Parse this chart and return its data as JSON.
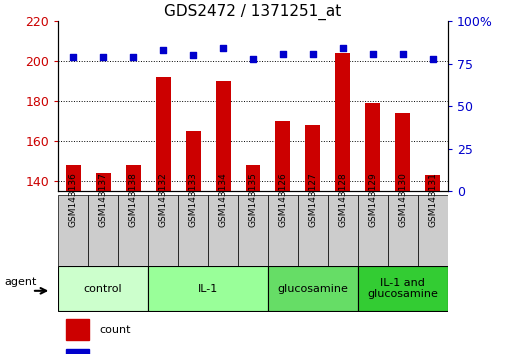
{
  "title": "GDS2472 / 1371251_at",
  "samples": [
    "GSM143136",
    "GSM143137",
    "GSM143138",
    "GSM143132",
    "GSM143133",
    "GSM143134",
    "GSM143135",
    "GSM143126",
    "GSM143127",
    "GSM143128",
    "GSM143129",
    "GSM143130",
    "GSM143131"
  ],
  "counts": [
    148,
    144,
    148,
    192,
    165,
    190,
    148,
    170,
    168,
    204,
    179,
    174,
    143
  ],
  "percentiles": [
    79,
    79,
    79,
    83,
    80,
    84,
    78,
    81,
    81,
    84,
    81,
    81,
    78
  ],
  "groups": [
    {
      "label": "control",
      "start": 0,
      "end": 3,
      "color": "#ccffcc"
    },
    {
      "label": "IL-1",
      "start": 3,
      "end": 7,
      "color": "#99ff99"
    },
    {
      "label": "glucosamine",
      "start": 7,
      "end": 10,
      "color": "#66dd66"
    },
    {
      "label": "IL-1 and\nglucosamine",
      "start": 10,
      "end": 13,
      "color": "#33cc33"
    }
  ],
  "bar_color": "#cc0000",
  "dot_color": "#0000cc",
  "ylim_left": [
    135,
    220
  ],
  "ylim_right": [
    0,
    100
  ],
  "yticks_left": [
    140,
    160,
    180,
    200,
    220
  ],
  "yticks_right": [
    0,
    25,
    50,
    75,
    100
  ],
  "bg_color": "#ffffff",
  "grid_color": "#000000",
  "tick_bg": "#cccccc",
  "bar_width": 0.5
}
